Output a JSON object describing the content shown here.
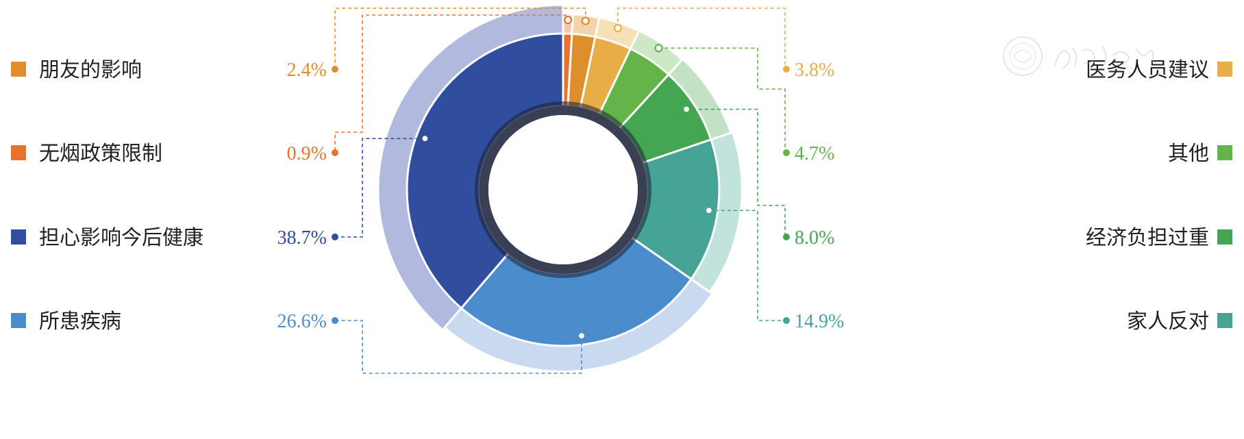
{
  "chart_data": {
    "type": "pie",
    "donut": true,
    "title": "",
    "legend": "split-left-right",
    "slices": [
      {
        "label": "无烟政策限制",
        "value": 0.9,
        "pct_label": "0.9%",
        "color": "#e8722c",
        "light": "#f6c8ab",
        "side": "left",
        "slot": 1
      },
      {
        "label": "朋友的影响",
        "value": 2.4,
        "pct_label": "2.4%",
        "color": "#dc8f2c",
        "light": "#f3d3a9",
        "side": "left",
        "slot": 0
      },
      {
        "label": "医务人员建议",
        "value": 3.8,
        "pct_label": "3.8%",
        "color": "#e8ad47",
        "light": "#f6e0b6",
        "side": "right",
        "slot": 0
      },
      {
        "label": "其他",
        "value": 4.7,
        "pct_label": "4.7%",
        "color": "#63b54a",
        "light": "#cde8c4",
        "side": "right",
        "slot": 1
      },
      {
        "label": "经济负担过重",
        "value": 8.0,
        "pct_label": "8.0%",
        "color": "#44a652",
        "light": "#c3e2c5",
        "side": "right",
        "slot": 2
      },
      {
        "label": "家人反对",
        "value": 14.9,
        "pct_label": "14.9%",
        "color": "#46a496",
        "light": "#c2e2dc",
        "side": "right",
        "slot": 3
      },
      {
        "label": "所患疾病",
        "value": 26.6,
        "pct_label": "26.6%",
        "color": "#4a8ccc",
        "light": "#c8d9f0",
        "side": "left",
        "slot": 3
      },
      {
        "label": "担心影响今后健康",
        "value": 38.7,
        "pct_label": "38.7%",
        "color": "#304d9e",
        "light": "#b1b9df",
        "side": "left",
        "slot": 2
      }
    ]
  }
}
